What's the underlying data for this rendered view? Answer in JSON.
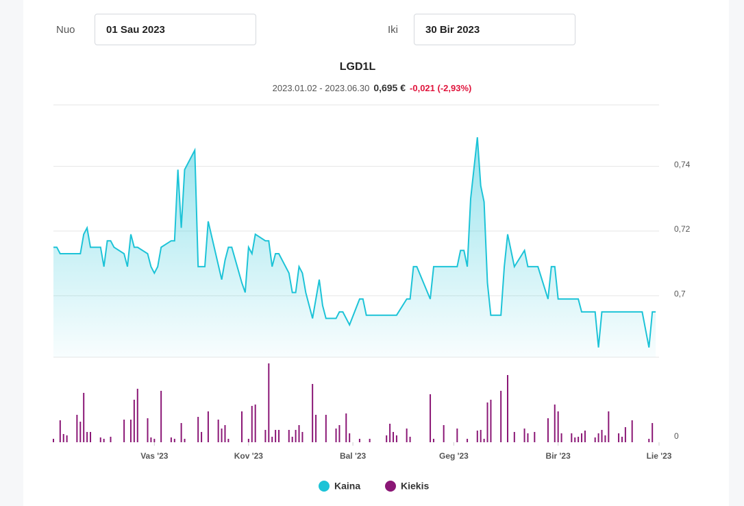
{
  "form": {
    "from_label": "Nuo",
    "from_value": "01 Sau 2023",
    "to_label": "Iki",
    "to_value": "30 Bir 2023"
  },
  "chart_data": [
    {
      "type": "line",
      "title": "LGD1L",
      "date_range": "2023.01.02 - 2023.06.30",
      "price": "0,695 €",
      "change": "-0,021 (-2,93%)",
      "x": [
        2,
        3,
        4,
        10,
        11,
        12,
        13,
        16,
        17,
        18,
        19,
        20,
        23,
        24,
        25,
        26,
        27,
        30,
        31,
        32,
        33,
        34,
        37,
        38,
        39,
        40,
        41,
        44,
        45,
        47,
        48,
        52,
        53,
        54,
        55,
        58,
        59,
        60,
        61,
        62,
        65,
        66,
        67,
        68,
        69,
        72,
        73,
        74,
        75,
        76,
        77,
        79,
        81,
        82,
        83,
        86,
        87,
        88,
        90,
        93,
        94,
        95,
        104,
        107,
        108,
        109,
        110,
        114,
        115,
        122,
        123,
        124,
        125,
        126,
        128,
        129,
        130,
        131,
        132,
        135,
        136,
        137,
        139,
        142,
        143,
        146,
        149,
        150,
        151,
        152,
        158,
        159,
        163,
        164,
        165,
        177,
        179,
        180,
        181
      ],
      "series": [
        {
          "name": "Kaina",
          "color": "#1cc3d7",
          "values": [
            0.715,
            0.715,
            0.713,
            0.713,
            0.719,
            0.721,
            0.715,
            0.715,
            0.709,
            0.717,
            0.717,
            0.715,
            0.713,
            0.709,
            0.719,
            0.715,
            0.715,
            0.713,
            0.709,
            0.707,
            0.709,
            0.715,
            0.717,
            0.717,
            0.739,
            0.721,
            0.739,
            0.745,
            0.709,
            0.709,
            0.723,
            0.705,
            0.711,
            0.715,
            0.715,
            0.704,
            0.701,
            0.715,
            0.713,
            0.719,
            0.717,
            0.717,
            0.709,
            0.713,
            0.713,
            0.707,
            0.701,
            0.701,
            0.709,
            0.707,
            0.701,
            0.693,
            0.705,
            0.697,
            0.693,
            0.693,
            0.695,
            0.695,
            0.691,
            0.699,
            0.699,
            0.694,
            0.694,
            0.699,
            0.699,
            0.709,
            0.709,
            0.699,
            0.709,
            0.709,
            0.714,
            0.714,
            0.709,
            0.73,
            0.749,
            0.734,
            0.729,
            0.704,
            0.694,
            0.694,
            0.709,
            0.719,
            0.709,
            0.714,
            0.709,
            0.709,
            0.699,
            0.709,
            0.709,
            0.699,
            0.699,
            0.695,
            0.695,
            0.684,
            0.695,
            0.695,
            0.684,
            0.695,
            0.695
          ]
        }
      ],
      "xlim": [
        2,
        182
      ],
      "ylim": [
        0.681,
        0.759
      ],
      "yticks": [
        {
          "value": 0.7,
          "label": "0,7"
        },
        {
          "value": 0.72,
          "label": "0,72"
        },
        {
          "value": 0.74,
          "label": "0,74"
        }
      ],
      "grid": true
    },
    {
      "type": "bar",
      "x": [
        2,
        4,
        5,
        6,
        9,
        10,
        11,
        12,
        13,
        16,
        17,
        19,
        23,
        25,
        26,
        27,
        30,
        31,
        32,
        34,
        37,
        38,
        40,
        41,
        45,
        46,
        48,
        51,
        52,
        53,
        54,
        58,
        60,
        61,
        62,
        65,
        66,
        67,
        68,
        69,
        72,
        73,
        74,
        75,
        76,
        79,
        80,
        83,
        86,
        87,
        89,
        90,
        93,
        96,
        101,
        102,
        103,
        104,
        107,
        108,
        114,
        115,
        118,
        122,
        125,
        128,
        129,
        130,
        131,
        132,
        135,
        137,
        139,
        142,
        143,
        145,
        149,
        151,
        152,
        153,
        156,
        157,
        158,
        159,
        160,
        163,
        164,
        165,
        166,
        167,
        170,
        171,
        172,
        174,
        179,
        180
      ],
      "series": [
        {
          "name": "Kiekis",
          "color": "#8a1675",
          "values": [
            5,
            32,
            12,
            10,
            40,
            30,
            72,
            15,
            15,
            7,
            5,
            8,
            33,
            33,
            62,
            78,
            35,
            7,
            5,
            75,
            7,
            5,
            28,
            5,
            37,
            15,
            45,
            33,
            20,
            25,
            5,
            45,
            5,
            53,
            55,
            18,
            115,
            8,
            18,
            18,
            18,
            8,
            18,
            25,
            15,
            85,
            40,
            40,
            20,
            25,
            42,
            13,
            5,
            5,
            10,
            27,
            15,
            10,
            20,
            8,
            70,
            5,
            25,
            20,
            5,
            17,
            18,
            5,
            58,
            62,
            75,
            98,
            15,
            20,
            13,
            15,
            35,
            55,
            45,
            13,
            13,
            7,
            8,
            13,
            17,
            7,
            13,
            18,
            10,
            45,
            13,
            8,
            22,
            32,
            5,
            28
          ]
        }
      ],
      "xlim": [
        2,
        182
      ],
      "ylim": [
        0,
        125
      ],
      "yticks": [
        0
      ],
      "xticks": [
        {
          "value": 32,
          "label": "Vas '23"
        },
        {
          "value": 60,
          "label": "Kov '23"
        },
        {
          "value": 91,
          "label": "Bal '23"
        },
        {
          "value": 121,
          "label": "Geg '23"
        },
        {
          "value": 152,
          "label": "Bir '23"
        },
        {
          "value": 182,
          "label": "Lie '23"
        }
      ]
    }
  ]
}
